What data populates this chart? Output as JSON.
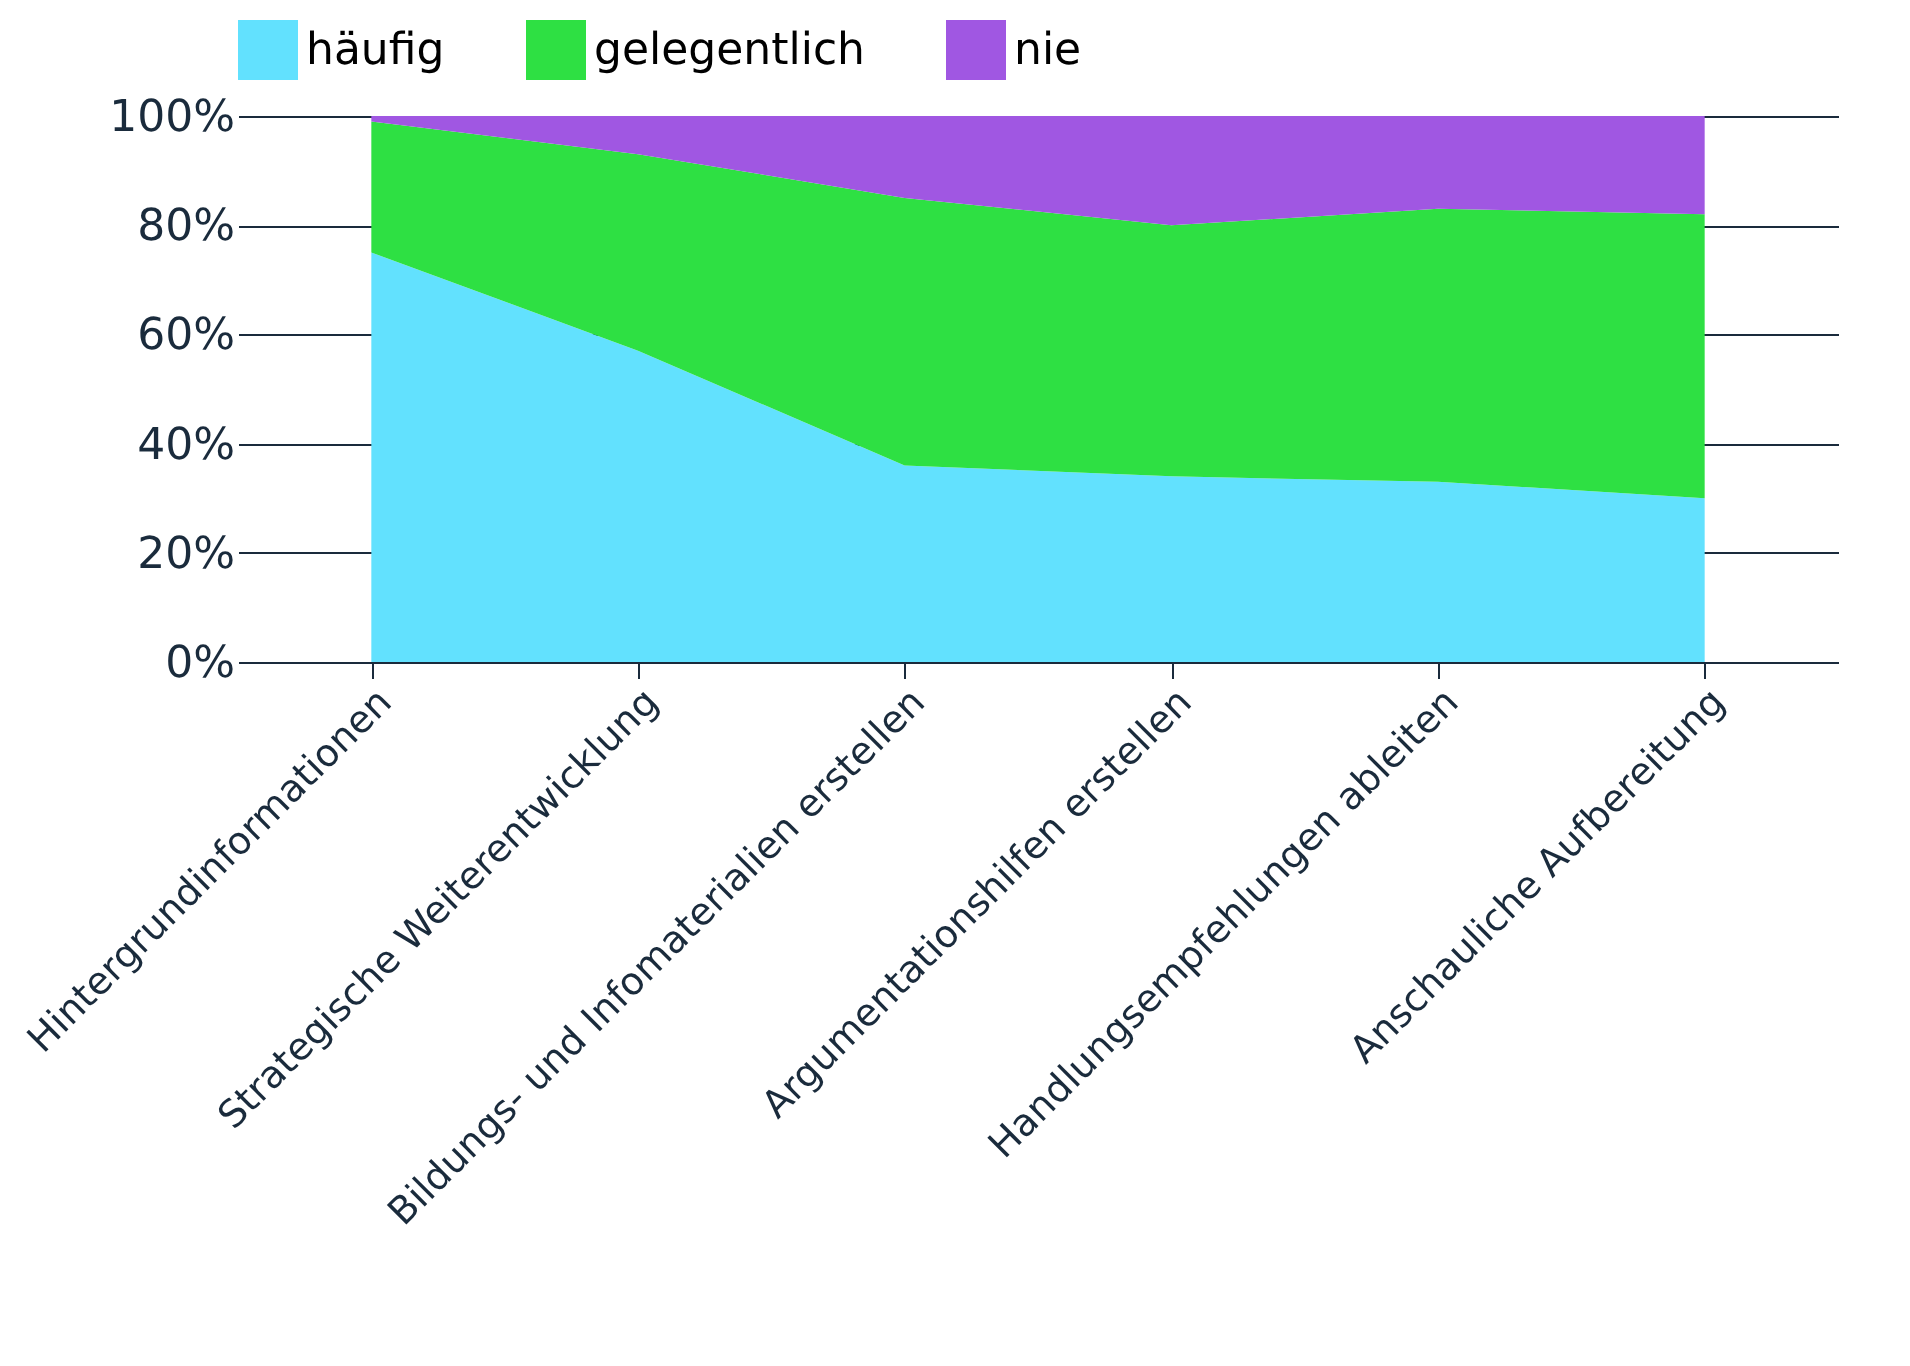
{
  "chart_data": {
    "type": "area",
    "stacked": true,
    "categories": [
      "Hintergrundinformationen",
      "Strategische Weiterentwicklung",
      "Bildungs- und Infomaterialien erstellen",
      "Argumentationshilfen erstellen",
      "Handlungsempfehlungen ableiten",
      "Anschauliche Aufbereitung"
    ],
    "series": [
      {
        "name": "häufig",
        "color": "#62e1fe",
        "values": [
          75,
          57,
          36,
          34,
          33,
          30
        ]
      },
      {
        "name": "gelegentlich",
        "color": "#2ee043",
        "values": [
          24,
          36,
          49,
          46,
          50,
          52
        ]
      },
      {
        "name": "nie",
        "color": "#a057e2",
        "values": [
          1,
          7,
          15,
          20,
          17,
          18
        ]
      }
    ],
    "ylim": [
      0,
      100
    ],
    "yticks": [
      {
        "value": 0,
        "label": "0%"
      },
      {
        "value": 20,
        "label": "20%"
      },
      {
        "value": 40,
        "label": "40%"
      },
      {
        "value": 60,
        "label": "60%"
      },
      {
        "value": 80,
        "label": "80%"
      },
      {
        "value": 100,
        "label": "100%"
      }
    ],
    "grid": "y",
    "legend": "top"
  }
}
